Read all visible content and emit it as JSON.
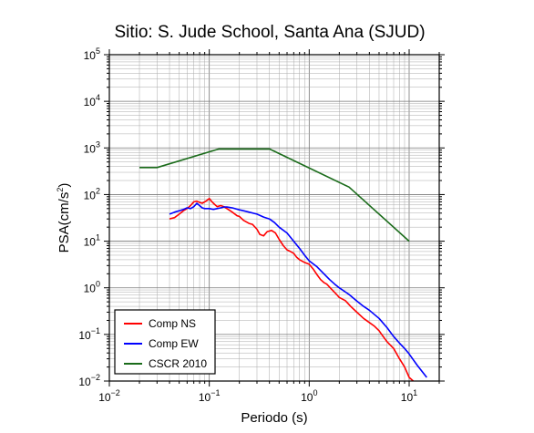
{
  "chart_data": {
    "type": "line",
    "title": "Sitio: S. Jude School, Santa Ana (SJUD)",
    "xlabel": "Periodo (s)",
    "ylabel_main": "PSA(cm/s",
    "ylabel_sup": "2",
    "ylabel_close": ")",
    "x_scale": "log",
    "y_scale": "log",
    "xlim": [
      0.01,
      20
    ],
    "ylim": [
      0.01,
      100000
    ],
    "grid": true,
    "legend_position": "bottom-left",
    "x_ticks": [
      {
        "base": "10",
        "exp": "−2",
        "value": 0.01
      },
      {
        "base": "10",
        "exp": "−1",
        "value": 0.1
      },
      {
        "base": "10",
        "exp": "0",
        "value": 1
      },
      {
        "base": "10",
        "exp": "1",
        "value": 10
      }
    ],
    "y_ticks": [
      {
        "base": "10",
        "exp": "−2",
        "value": 0.01
      },
      {
        "base": "10",
        "exp": "−1",
        "value": 0.1
      },
      {
        "base": "10",
        "exp": "0",
        "value": 1
      },
      {
        "base": "10",
        "exp": "1",
        "value": 10
      },
      {
        "base": "10",
        "exp": "2",
        "value": 100
      },
      {
        "base": "10",
        "exp": "3",
        "value": 1000
      },
      {
        "base": "10",
        "exp": "4",
        "value": 10000
      },
      {
        "base": "10",
        "exp": "5",
        "value": 100000
      }
    ],
    "series": [
      {
        "name": "Comp NS",
        "color": "#ff0000",
        "points": [
          [
            0.04,
            30
          ],
          [
            0.045,
            32
          ],
          [
            0.05,
            38
          ],
          [
            0.055,
            45
          ],
          [
            0.06,
            50
          ],
          [
            0.065,
            58
          ],
          [
            0.07,
            70
          ],
          [
            0.075,
            72
          ],
          [
            0.08,
            68
          ],
          [
            0.085,
            65
          ],
          [
            0.09,
            70
          ],
          [
            0.095,
            75
          ],
          [
            0.1,
            82
          ],
          [
            0.105,
            72
          ],
          [
            0.11,
            65
          ],
          [
            0.12,
            55
          ],
          [
            0.13,
            58
          ],
          [
            0.14,
            55
          ],
          [
            0.15,
            50
          ],
          [
            0.17,
            42
          ],
          [
            0.19,
            35
          ],
          [
            0.2,
            34
          ],
          [
            0.22,
            28
          ],
          [
            0.25,
            24
          ],
          [
            0.27,
            23
          ],
          [
            0.3,
            18
          ],
          [
            0.32,
            14
          ],
          [
            0.35,
            13
          ],
          [
            0.38,
            16
          ],
          [
            0.42,
            17
          ],
          [
            0.46,
            15
          ],
          [
            0.5,
            11
          ],
          [
            0.55,
            8
          ],
          [
            0.6,
            6.5
          ],
          [
            0.65,
            6
          ],
          [
            0.7,
            5.5
          ],
          [
            0.75,
            4.5
          ],
          [
            0.8,
            4
          ],
          [
            0.9,
            3.5
          ],
          [
            1.0,
            3.2
          ],
          [
            1.1,
            2.5
          ],
          [
            1.2,
            1.9
          ],
          [
            1.3,
            1.5
          ],
          [
            1.4,
            1.3
          ],
          [
            1.5,
            1.2
          ],
          [
            1.7,
            0.9
          ],
          [
            1.9,
            0.7
          ],
          [
            2.0,
            0.62
          ],
          [
            2.3,
            0.53
          ],
          [
            2.6,
            0.4
          ],
          [
            3.0,
            0.3
          ],
          [
            3.5,
            0.22
          ],
          [
            4.0,
            0.18
          ],
          [
            4.5,
            0.15
          ],
          [
            5.0,
            0.12
          ],
          [
            5.5,
            0.09
          ],
          [
            6.0,
            0.07
          ],
          [
            7.0,
            0.05
          ],
          [
            8.0,
            0.03
          ],
          [
            9.0,
            0.02
          ],
          [
            10.0,
            0.012
          ],
          [
            11.0,
            0.01
          ]
        ]
      },
      {
        "name": "Comp EW",
        "color": "#0000ff",
        "points": [
          [
            0.04,
            38
          ],
          [
            0.045,
            42
          ],
          [
            0.05,
            45
          ],
          [
            0.055,
            48
          ],
          [
            0.06,
            52
          ],
          [
            0.065,
            50
          ],
          [
            0.07,
            55
          ],
          [
            0.075,
            65
          ],
          [
            0.08,
            58
          ],
          [
            0.085,
            52
          ],
          [
            0.09,
            50
          ],
          [
            0.1,
            50
          ],
          [
            0.11,
            48
          ],
          [
            0.12,
            50
          ],
          [
            0.13,
            52
          ],
          [
            0.14,
            54
          ],
          [
            0.15,
            54
          ],
          [
            0.17,
            52
          ],
          [
            0.2,
            47
          ],
          [
            0.22,
            45
          ],
          [
            0.25,
            42
          ],
          [
            0.3,
            38
          ],
          [
            0.35,
            33
          ],
          [
            0.4,
            30
          ],
          [
            0.45,
            25
          ],
          [
            0.5,
            20
          ],
          [
            0.6,
            15
          ],
          [
            0.7,
            10
          ],
          [
            0.8,
            7
          ],
          [
            0.9,
            5
          ],
          [
            1.0,
            3.8
          ],
          [
            1.2,
            2.8
          ],
          [
            1.4,
            2.0
          ],
          [
            1.6,
            1.5
          ],
          [
            1.8,
            1.2
          ],
          [
            2.0,
            1.0
          ],
          [
            2.5,
            0.72
          ],
          [
            3.0,
            0.52
          ],
          [
            3.5,
            0.4
          ],
          [
            4.0,
            0.33
          ],
          [
            5.0,
            0.22
          ],
          [
            6.0,
            0.14
          ],
          [
            7.0,
            0.09
          ],
          [
            8.0,
            0.065
          ],
          [
            9.0,
            0.05
          ],
          [
            10.0,
            0.038
          ],
          [
            12.0,
            0.022
          ],
          [
            15.0,
            0.012
          ]
        ]
      },
      {
        "name": "CSCR 2010",
        "color": "#1a6b1a",
        "points": [
          [
            0.02,
            380
          ],
          [
            0.03,
            380
          ],
          [
            0.125,
            950
          ],
          [
            0.4,
            950
          ],
          [
            2.5,
            145
          ],
          [
            10.0,
            10
          ]
        ]
      }
    ]
  }
}
